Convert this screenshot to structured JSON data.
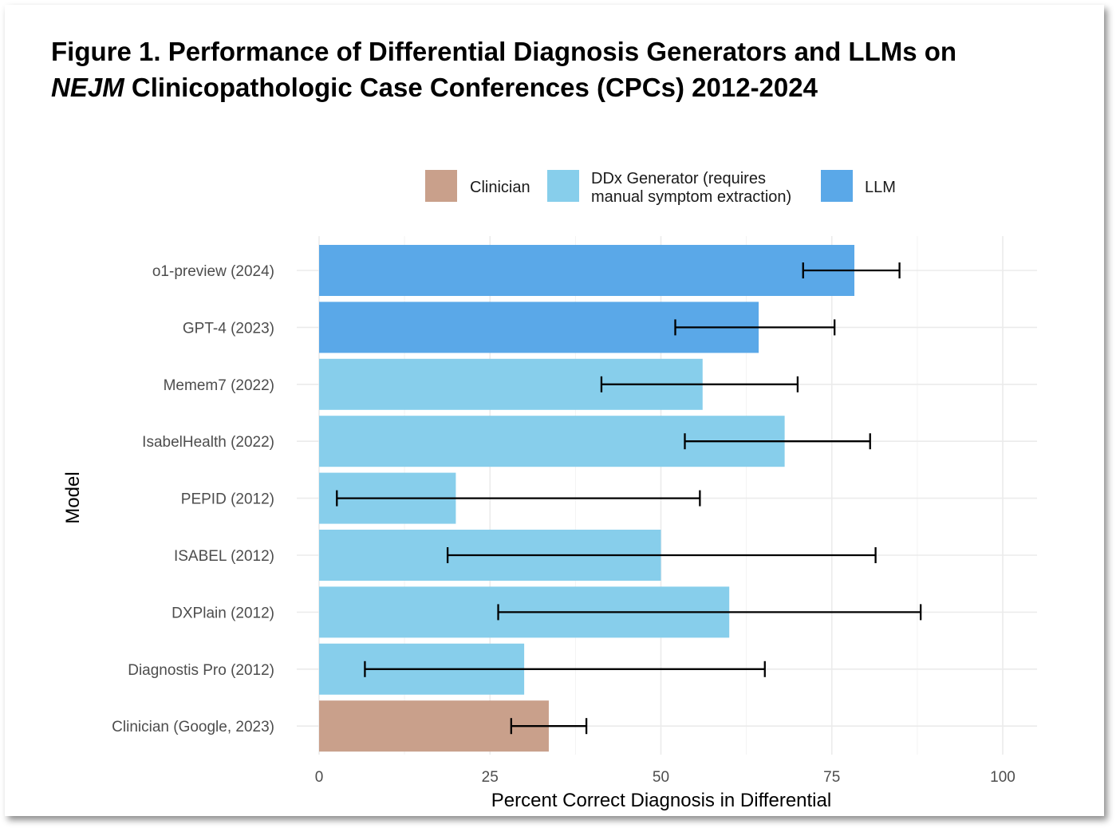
{
  "title": {
    "line1": "Figure 1. Performance of Differential Diagnosis Generators and LLMs on",
    "line2_italic": "NEJM",
    "line2_rest": " Clinicopathologic Case Conferences (CPCs) 2012-2024"
  },
  "chart_data": {
    "type": "bar",
    "orientation": "horizontal",
    "xlabel": "Percent Correct Diagnosis in Differential",
    "ylabel": "Model",
    "xlim": [
      0,
      100
    ],
    "xticks": [
      0,
      25,
      50,
      75,
      100
    ],
    "grid": true,
    "legend_position": "top",
    "legend": [
      {
        "key": "clinician",
        "label_lines": [
          "Clinician"
        ],
        "color": "#c9a08b"
      },
      {
        "key": "ddx",
        "label_lines": [
          "DDx Generator (requires",
          "manual symptom extraction)"
        ],
        "color": "#87ceeb"
      },
      {
        "key": "llm",
        "label_lines": [
          "LLM"
        ],
        "color": "#5aa8e8"
      }
    ],
    "categories": [
      "o1-preview (2024)",
      "GPT-4 (2023)",
      "Memem7 (2022)",
      "IsabelHealth (2022)",
      "PEPID (2012)",
      "ISABEL (2012)",
      "DXPlain (2012)",
      "Diagnostis Pro (2012)",
      "Clinician (Google, 2023)"
    ],
    "groups": [
      "llm",
      "llm",
      "ddx",
      "ddx",
      "ddx",
      "ddx",
      "ddx",
      "ddx",
      "clinician"
    ],
    "values": [
      78.3,
      64.3,
      56.1,
      68.1,
      20,
      50,
      60,
      30,
      33.6
    ],
    "error_low": [
      70.8,
      52.1,
      41.3,
      53.5,
      2.6,
      18.8,
      26.2,
      6.7,
      28.1
    ],
    "error_high": [
      84.9,
      75.4,
      70.0,
      80.6,
      55.7,
      81.4,
      88.0,
      65.2,
      39.1
    ]
  }
}
